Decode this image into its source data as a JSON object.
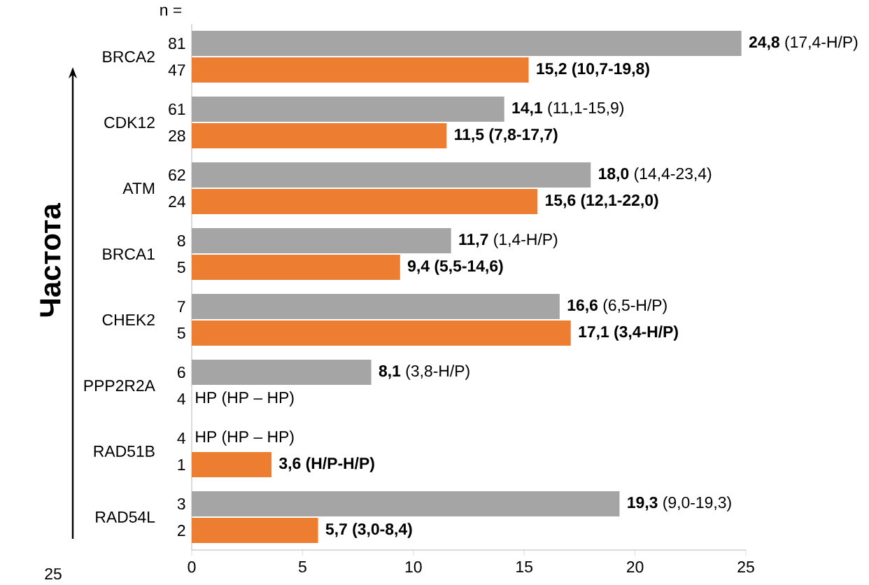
{
  "chart_data": {
    "type": "bar",
    "orientation": "horizontal",
    "ylabel": "Частота",
    "categories": [
      "BRCA2",
      "CDK12",
      "ATM",
      "BRCA1",
      "CHEK2",
      "PPP2R2A",
      "RAD51B",
      "RAD54L"
    ],
    "series": [
      {
        "color": "#a5a5a5",
        "values": [
          24.8,
          14.1,
          18.0,
          11.7,
          16.6,
          8.1,
          null,
          19.3
        ],
        "value_labels": [
          "**24,8** (17,4-Н/Р)",
          "**14,1** (11,1-15,9)",
          "**18,0** (14,4-23,4)",
          "**11,7** (1,4-Н/Р)",
          "**16,6** (6,5-Н/Р)",
          "**8,1** (3,8-Н/Р)",
          "НР (НР – НР)",
          "**19,3** (9,0-19,3)"
        ]
      },
      {
        "color": "#ed7d31",
        "values": [
          15.2,
          11.5,
          15.6,
          9.4,
          17.1,
          null,
          3.6,
          5.7
        ],
        "value_labels": [
          "**15,2 (10,7-19,8)**",
          "**11,5 (7,8-17,7)**",
          "**15,6 (12,1-22,0)**",
          "**9,4 (5,5-14,6)**",
          "**17,1 (3,4-Н/Р)**",
          "НР (НР – НР)",
          "**3,6 (Н/Р-Н/Р)**",
          "**5,7 (3,0-8,4)**"
        ]
      }
    ],
    "xlim": [
      0,
      25
    ],
    "xticks": [
      0,
      5,
      10,
      15,
      20,
      25
    ],
    "annotations": [
      "n =",
      "25",
      "81",
      "47",
      "61",
      "28",
      "62",
      "24",
      "8",
      "5",
      "7",
      "5",
      "6",
      "4",
      "4",
      "1",
      "3",
      "2"
    ]
  }
}
